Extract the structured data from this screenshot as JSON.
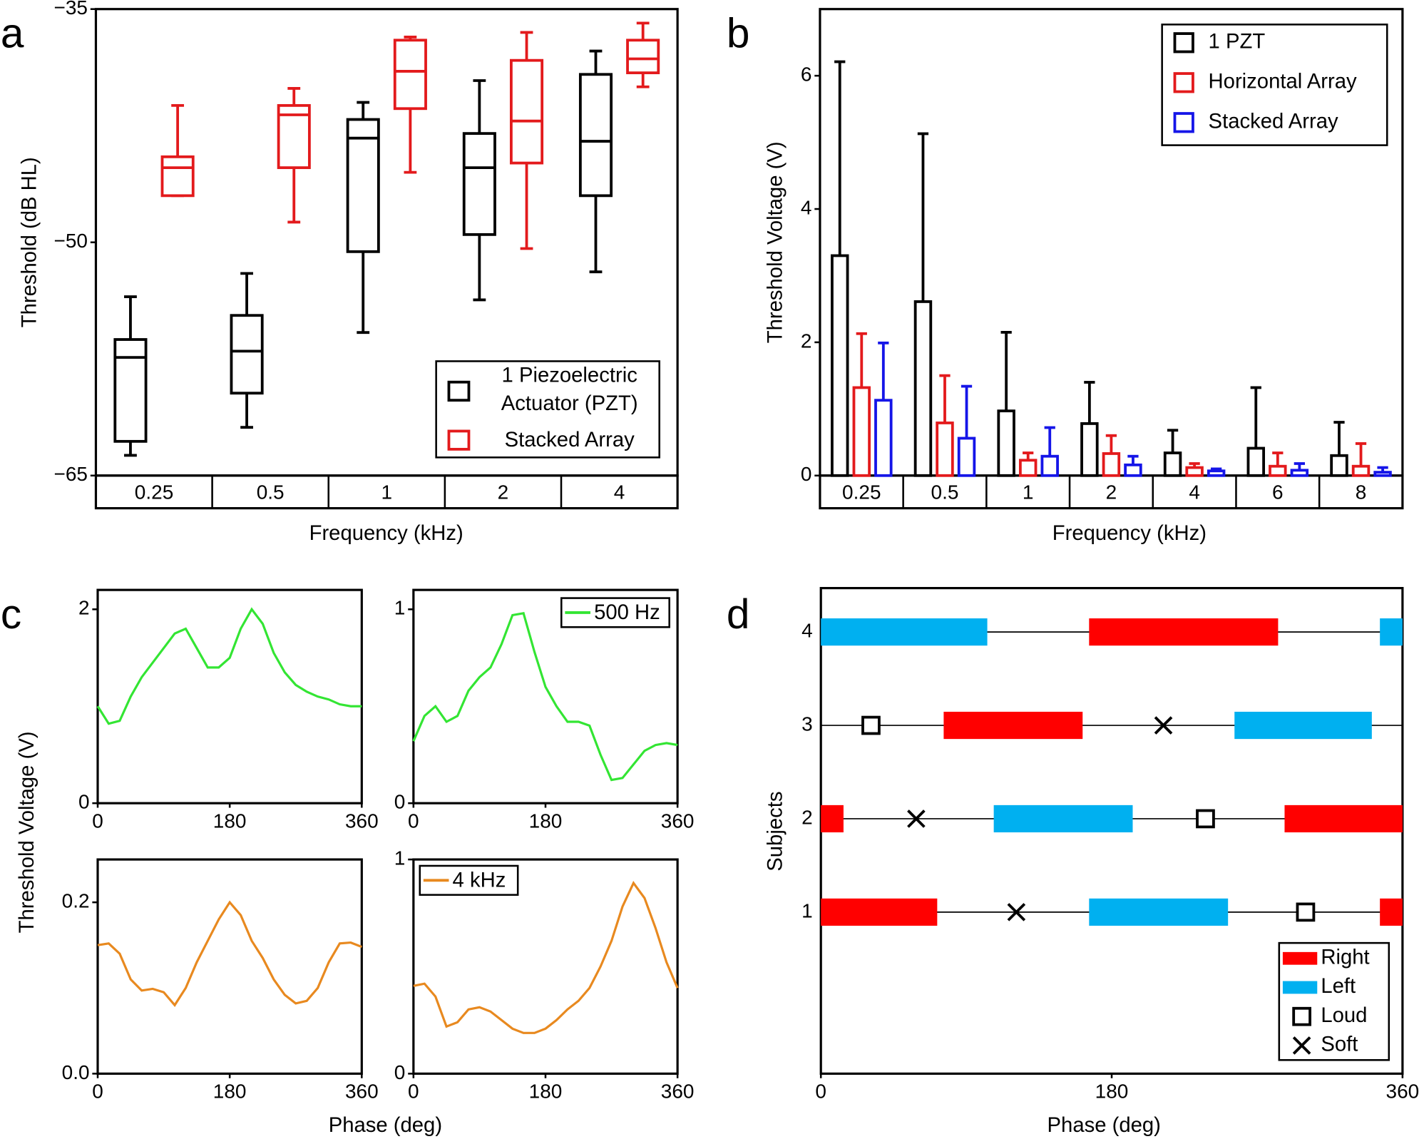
{
  "chart_data": [
    {
      "type": "box",
      "panel_label": "a",
      "xlabel": "Frequency (kHz)",
      "ylabel": "Threshold (dB HL)",
      "categories": [
        "0.25",
        "0.5",
        "1",
        "2",
        "4"
      ],
      "ylim": [
        -65,
        -35
      ],
      "yticks": [
        {
          "value": -65,
          "label": "−65"
        },
        {
          "value": -50,
          "label": "−50"
        },
        {
          "value": -35,
          "label": "−35"
        }
      ],
      "legend": "lower right",
      "series": [
        {
          "name": "1 Piezoelectric Actuator (PZT)",
          "color": "#000000",
          "min": [
            -63.7,
            -61.9,
            -55.8,
            -53.7,
            -51.9
          ],
          "q1": [
            -62.8,
            -59.7,
            -50.6,
            -49.5,
            -47.0
          ],
          "median": [
            -57.4,
            -57.0,
            -43.3,
            -45.2,
            -43.5
          ],
          "q3": [
            -56.25,
            -54.7,
            -42.1,
            -43.0,
            -39.2
          ],
          "max": [
            -53.5,
            -52.0,
            -41.0,
            -39.6,
            -37.7
          ]
        },
        {
          "name": "Stacked Array",
          "color": "#e31a1c",
          "min": [
            -47.0,
            -48.7,
            -45.5,
            -50.4,
            -40.0
          ],
          "q1": [
            -47.0,
            -45.2,
            -41.4,
            -44.9,
            -39.1
          ],
          "median": [
            -45.2,
            -41.8,
            -39.0,
            -42.2,
            -38.2
          ],
          "q3": [
            -44.5,
            -41.2,
            -37.0,
            -38.3,
            -37.0
          ],
          "max": [
            -41.2,
            -40.1,
            -36.8,
            -36.5,
            -35.9
          ]
        }
      ]
    },
    {
      "type": "bar",
      "panel_label": "b",
      "xlabel": "Frequency (kHz)",
      "ylabel": "Threshold Voltage (V)",
      "categories": [
        "0.25",
        "0.5",
        "1",
        "2",
        "4",
        "6",
        "8"
      ],
      "ylim": [
        0,
        7
      ],
      "yticks": [
        0,
        2,
        4,
        6
      ],
      "legend": "upper right",
      "series": [
        {
          "name": "1 PZT",
          "color": "#000000",
          "values": [
            3.3,
            2.61,
            0.97,
            0.78,
            0.34,
            0.41,
            0.3
          ],
          "errors": [
            2.91,
            2.52,
            1.18,
            0.62,
            0.34,
            0.91,
            0.5
          ]
        },
        {
          "name": "Horizontal Array",
          "color": "#e31a1c",
          "values": [
            1.32,
            0.79,
            0.23,
            0.33,
            0.12,
            0.14,
            0.14
          ],
          "errors": [
            0.81,
            0.71,
            0.11,
            0.27,
            0.06,
            0.2,
            0.34
          ]
        },
        {
          "name": "Stacked Array",
          "color": "#1515e8",
          "values": [
            1.13,
            0.56,
            0.29,
            0.16,
            0.07,
            0.08,
            0.05
          ],
          "errors": [
            0.86,
            0.78,
            0.43,
            0.13,
            0.03,
            0.1,
            0.07
          ]
        }
      ]
    },
    {
      "type": "line",
      "panel_label": "c",
      "ylabel": "Threshold Voltage (V)",
      "x": [
        0,
        15,
        30,
        45,
        60,
        75,
        90,
        105,
        120,
        135,
        150,
        165,
        180,
        195,
        210,
        225,
        240,
        255,
        270,
        285,
        300,
        315,
        330,
        345,
        360
      ],
      "xlim": [
        0,
        360
      ],
      "xticks": [
        0,
        180,
        360
      ],
      "ylim": [
        0,
        2.2
      ],
      "yticks": [
        0,
        2
      ],
      "series": [
        {
          "color": "#33e533",
          "values": [
            1.0,
            0.82,
            0.85,
            1.1,
            1.3,
            1.45,
            1.6,
            1.75,
            1.8,
            1.6,
            1.4,
            1.4,
            1.5,
            1.8,
            2.0,
            1.85,
            1.55,
            1.35,
            1.22,
            1.15,
            1.1,
            1.07,
            1.02,
            1.0,
            1.0
          ]
        }
      ]
    },
    {
      "type": "line",
      "x": [
        0,
        15,
        30,
        45,
        60,
        75,
        90,
        105,
        120,
        135,
        150,
        165,
        180,
        195,
        210,
        225,
        240,
        255,
        270,
        285,
        300,
        315,
        330,
        345,
        360
      ],
      "xlim": [
        0,
        360
      ],
      "xticks": [
        0,
        180,
        360
      ],
      "ylim": [
        0,
        1.1
      ],
      "yticks": [
        0,
        1
      ],
      "legend": "upper right",
      "series": [
        {
          "name": "500 Hz",
          "color": "#33e533",
          "values": [
            0.32,
            0.45,
            0.5,
            0.42,
            0.45,
            0.58,
            0.65,
            0.7,
            0.82,
            0.97,
            0.98,
            0.78,
            0.6,
            0.5,
            0.42,
            0.42,
            0.4,
            0.25,
            0.12,
            0.13,
            0.2,
            0.27,
            0.3,
            0.31,
            0.3
          ]
        }
      ]
    },
    {
      "type": "line",
      "xlabel": "Phase (deg)",
      "x": [
        0,
        15,
        30,
        45,
        60,
        75,
        90,
        105,
        120,
        135,
        150,
        165,
        180,
        195,
        210,
        225,
        240,
        255,
        270,
        285,
        300,
        315,
        330,
        345,
        360
      ],
      "xlim": [
        0,
        360
      ],
      "xticks": [
        0,
        180,
        360
      ],
      "ylim": [
        0,
        0.25
      ],
      "yticks": [
        {
          "value": 0,
          "label": "0.0"
        },
        0.2
      ],
      "series": [
        {
          "color": "#e8891f",
          "values": [
            0.15,
            0.152,
            0.14,
            0.11,
            0.097,
            0.099,
            0.095,
            0.08,
            0.1,
            0.13,
            0.155,
            0.18,
            0.2,
            0.185,
            0.155,
            0.135,
            0.11,
            0.092,
            0.082,
            0.085,
            0.1,
            0.13,
            0.152,
            0.153,
            0.148
          ]
        }
      ]
    },
    {
      "type": "line",
      "x": [
        0,
        15,
        30,
        45,
        60,
        75,
        90,
        105,
        120,
        135,
        150,
        165,
        180,
        195,
        210,
        225,
        240,
        255,
        270,
        285,
        300,
        315,
        330,
        345,
        360
      ],
      "xlim": [
        0,
        360
      ],
      "xticks": [
        0,
        180,
        360
      ],
      "ylim": [
        0,
        1
      ],
      "yticks": [
        0,
        1
      ],
      "legend": "upper left",
      "series": [
        {
          "name": "4 kHz",
          "color": "#e8891f",
          "values": [
            0.41,
            0.42,
            0.36,
            0.22,
            0.24,
            0.3,
            0.31,
            0.29,
            0.25,
            0.21,
            0.19,
            0.19,
            0.21,
            0.25,
            0.3,
            0.34,
            0.4,
            0.5,
            0.62,
            0.78,
            0.89,
            0.82,
            0.68,
            0.52,
            0.4
          ]
        }
      ]
    },
    {
      "type": "timeline",
      "panel_label": "d",
      "xlabel": "Phase (deg)",
      "ylabel": "Subjects",
      "xlim": [
        0,
        360
      ],
      "xticks": [
        0,
        180,
        360
      ],
      "ylim": [
        -0.73,
        4.47
      ],
      "yticks": [
        1,
        2,
        3,
        4
      ],
      "legend": "lower right",
      "series": [
        {
          "name": "Right",
          "color": "#ff0000",
          "marker": "bar",
          "subjects": [
            4,
            3,
            2,
            2,
            1,
            1
          ],
          "starts": [
            166,
            76,
            0,
            287,
            0,
            346
          ],
          "ends": [
            283,
            162,
            14,
            360,
            72,
            360
          ]
        },
        {
          "name": "Left",
          "color": "#00b0f0",
          "marker": "bar",
          "subjects": [
            4,
            4,
            3,
            2,
            1
          ],
          "starts": [
            0,
            346,
            256,
            107,
            166
          ],
          "ends": [
            103,
            360,
            341,
            193,
            252
          ]
        },
        {
          "name": "Loud",
          "color": "#000000",
          "marker": "square",
          "subjects": [
            3,
            2,
            1
          ],
          "x": [
            31,
            238,
            300
          ]
        },
        {
          "name": "Soft",
          "color": "#000000",
          "marker": "x",
          "subjects": [
            3,
            2,
            1
          ],
          "x": [
            212,
            59,
            121
          ]
        }
      ]
    }
  ]
}
